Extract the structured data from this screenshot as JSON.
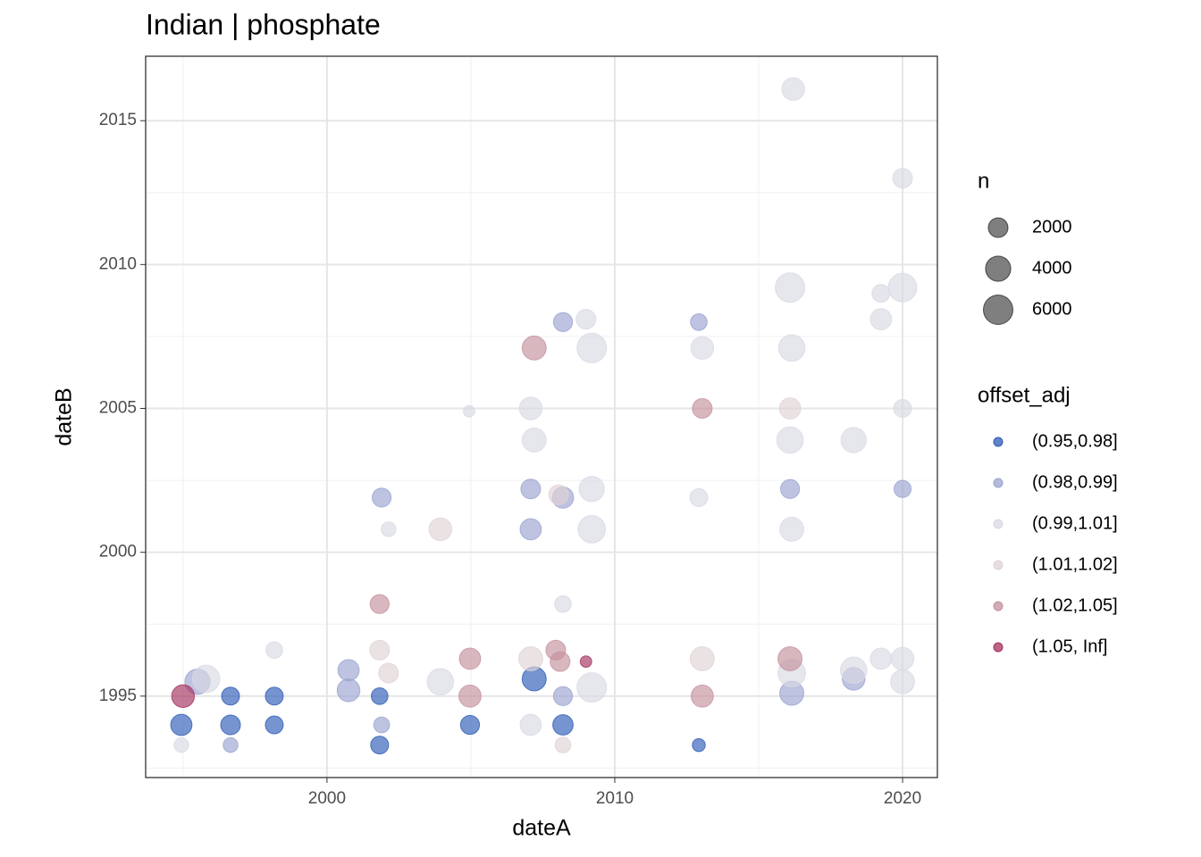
{
  "chart_data": {
    "type": "scatter",
    "title": "Indian | phosphate",
    "x_label": "dateA",
    "y_label": "dateB",
    "xlim": [
      1993.7,
      2021.21
    ],
    "ylim": [
      1992.17,
      2017.24
    ],
    "xticks": [
      2000,
      2010,
      2020
    ],
    "yticks": [
      1995,
      2000,
      2005,
      2010,
      2015
    ],
    "x_minor_grid": [
      1995,
      2005,
      2015
    ],
    "y_minor_grid": [
      1992.5,
      1997.5,
      2002.5,
      2007.5,
      2012.5
    ],
    "grid": true,
    "size_legend": {
      "title": "n",
      "values": [
        2000,
        4000,
        6000
      ]
    },
    "color_legend_title": "offset_adj",
    "series": [
      {
        "name": "(0.95,0.98]",
        "color": "#2d5bb5",
        "x": [
          1994.94,
          1996.65,
          1998.17,
          1998.17,
          2001.83,
          2004.97,
          2008.2,
          2007.2,
          2012.92,
          1996.65,
          2001.83
        ],
        "y": [
          1994.0,
          1994.0,
          1995.0,
          1994.0,
          1993.3,
          1994.0,
          1994.0,
          1995.6,
          1993.3,
          1995.0,
          1995.0
        ],
        "n": [
          2500,
          2000,
          1500,
          1500,
          1500,
          1800,
          2200,
          3500,
          500,
          1500,
          1200
        ]
      },
      {
        "name": "(0.98,0.99]",
        "color": "#9aa3cf",
        "x": [
          2000.75,
          2001.9,
          2008.2,
          2007.08,
          2012.92,
          2016.09,
          2020.0,
          1996.65,
          2001.9,
          2008.2,
          1995.5,
          2016.15,
          2018.3,
          2007.08,
          2008.2,
          2000.75
        ],
        "y": [
          1995.9,
          2001.9,
          2008.0,
          2002.2,
          2008.0,
          2002.2,
          2002.2,
          1993.3,
          1994.0,
          1995.0,
          1995.5,
          1995.1,
          1995.6,
          2000.8,
          2001.9,
          1995.2
        ],
        "n": [
          2500,
          1800,
          1800,
          2000,
          1200,
          1800,
          1300,
          800,
          1000,
          1800,
          4000,
          3500,
          3000,
          2500,
          2500,
          3000
        ]
      },
      {
        "name": "(0.99,1.01]",
        "color": "#d8d9e3",
        "x": [
          2016.2,
          2020.0,
          2016.09,
          2020.0,
          2019.25,
          2019.25,
          2009.0,
          2009.2,
          2013.04,
          2016.15,
          2004.94,
          2007.08,
          2007.2,
          2016.09,
          2018.3,
          2020.0,
          2009.2,
          2012.92,
          2009.2,
          2016.15,
          2002.14,
          2008.2,
          1998.17,
          2019.25,
          2020.0,
          2020.0,
          1995.8,
          2003.94,
          2009.2,
          2016.15,
          2007.08,
          1994.94,
          2018.3
        ],
        "y": [
          2016.1,
          2013.0,
          2009.2,
          2009.2,
          2009.0,
          2008.1,
          2008.1,
          2007.1,
          2007.1,
          2007.1,
          2004.9,
          2005.0,
          2003.9,
          2003.9,
          2003.9,
          2005.0,
          2002.2,
          2001.9,
          2000.8,
          2000.8,
          2000.8,
          1998.2,
          1996.6,
          1996.3,
          1996.3,
          1995.5,
          1995.6,
          1995.5,
          1995.3,
          1995.8,
          1994.0,
          1993.3,
          1995.9
        ],
        "n": [
          3000,
          2000,
          6000,
          5500,
          1500,
          2500,
          2000,
          6000,
          3000,
          4500,
          300,
          3000,
          3500,
          4500,
          4000,
          1500,
          4000,
          1500,
          5000,
          3500,
          800,
          1200,
          1200,
          2500,
          3000,
          3500,
          5000,
          4500,
          6000,
          5000,
          2500,
          800,
          4500
        ]
      },
      {
        "name": "(1.01,1.02]",
        "color": "#e0d2d6",
        "x": [
          2003.94,
          2001.83,
          2007.08,
          2013.04,
          2016.09,
          2008.2,
          2002.14,
          2008.05
        ],
        "y": [
          2000.8,
          1996.6,
          1996.3,
          1996.3,
          2005.0,
          1993.3,
          1995.8,
          2002.0
        ],
        "n": [
          3000,
          2000,
          3500,
          3500,
          2500,
          1000,
          2000,
          2000
        ]
      },
      {
        "name": "(1.02,1.05]",
        "color": "#c4909d",
        "x": [
          2007.2,
          2013.04,
          2001.83,
          2004.97,
          2004.97,
          2007.95,
          2008.1,
          2013.04,
          2016.09
        ],
        "y": [
          2007.1,
          2005.0,
          1998.2,
          1996.3,
          1995.0,
          1996.6,
          1996.2,
          1995.0,
          1996.3
        ],
        "n": [
          3500,
          2000,
          1800,
          2500,
          2800,
          2000,
          2000,
          2800,
          3500
        ]
      },
      {
        "name": "(1.05, Inf]",
        "color": "#a3305e",
        "x": [
          1995.0,
          2009.0
        ],
        "y": [
          1995.0,
          1996.2
        ],
        "n": [
          3000,
          300
        ]
      }
    ]
  }
}
